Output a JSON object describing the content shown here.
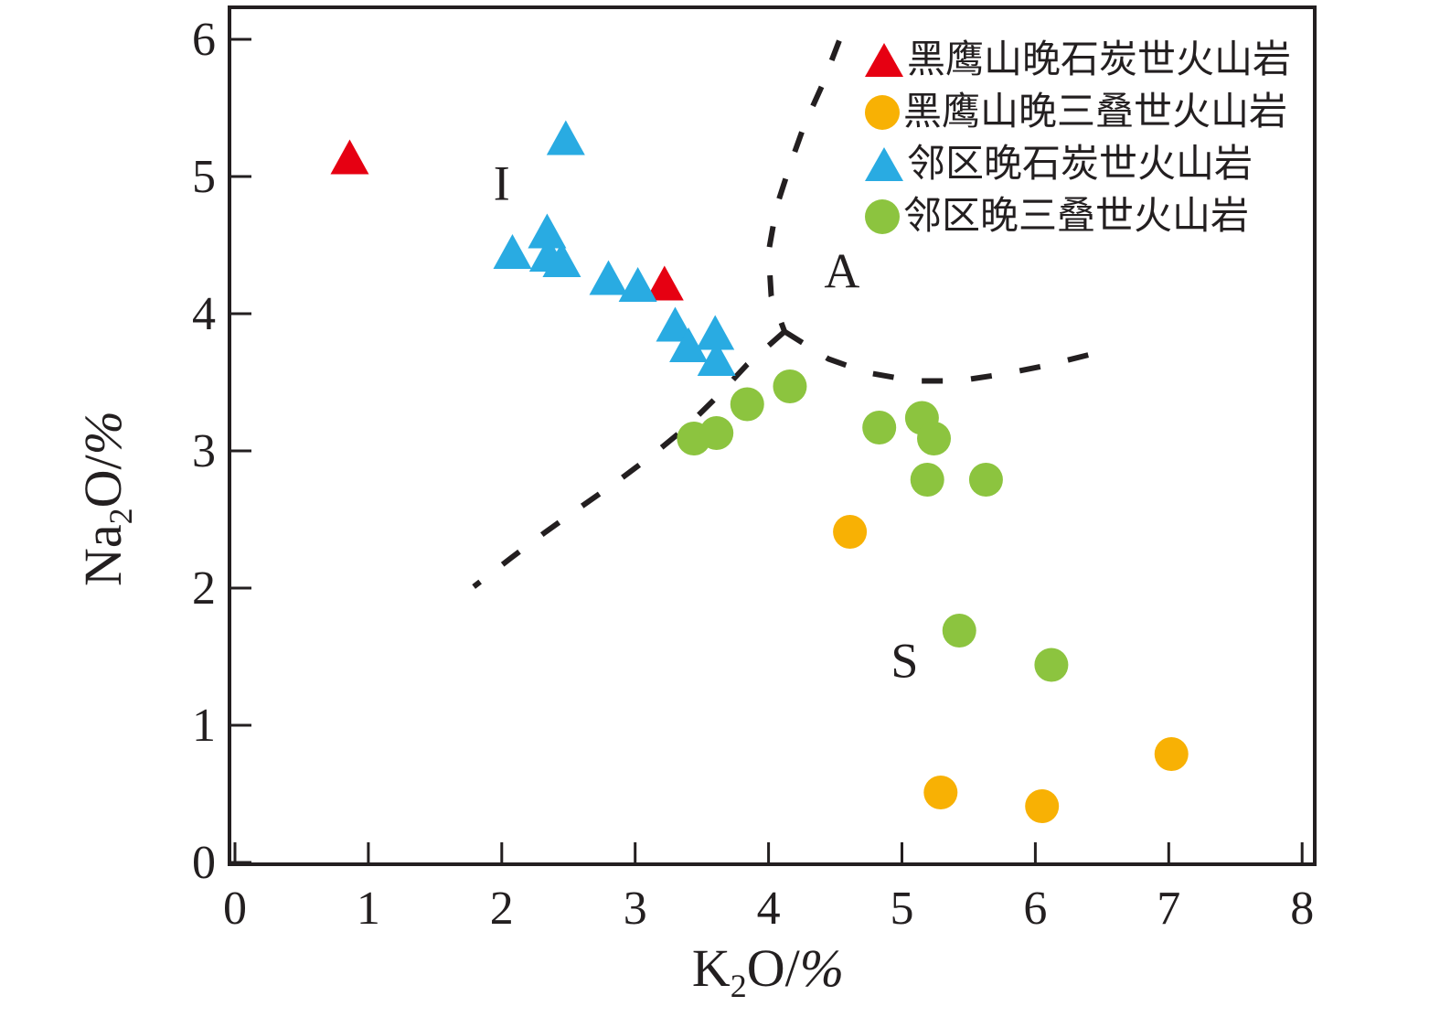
{
  "figure": {
    "background": "#ffffff",
    "line_color": "#231f20"
  },
  "chart_data": {
    "type": "scatter",
    "title": "",
    "xlabel_segments": [
      {
        "t": "K"
      },
      {
        "t": "2",
        "sub": true
      },
      {
        "t": "O/"
      },
      {
        "t": "%",
        "italic": true
      }
    ],
    "ylabel_segments": [
      {
        "t": "Na"
      },
      {
        "t": "2",
        "sub": true
      },
      {
        "t": "O/"
      },
      {
        "t": "%",
        "italic": true
      }
    ],
    "xlim": [
      0,
      8.1
    ],
    "ylim": [
      0,
      6.25
    ],
    "xticks": [
      0,
      1,
      2,
      3,
      4,
      5,
      6,
      7,
      8
    ],
    "yticks": [
      0,
      1,
      2,
      3,
      4,
      5,
      6
    ],
    "grid": false,
    "legend_position": "top-right-inside",
    "series": [
      {
        "name": "黑鹰山晚石炭世火山岩",
        "marker": "triangle",
        "color": "#e60012",
        "points": [
          [
            0.86,
            5.11
          ],
          [
            3.22,
            4.19
          ]
        ]
      },
      {
        "name": "黑鹰山晚三叠世火山岩",
        "marker": "circle",
        "color": "#f8b104",
        "points": [
          [
            4.61,
            2.41
          ],
          [
            5.29,
            0.51
          ],
          [
            6.05,
            0.41
          ],
          [
            7.02,
            0.79
          ]
        ]
      },
      {
        "name": "邻区晚石炭世火山岩",
        "marker": "triangle",
        "color": "#29abe2",
        "points": [
          [
            2.48,
            5.25
          ],
          [
            2.08,
            4.42
          ],
          [
            2.34,
            4.57
          ],
          [
            2.35,
            4.4
          ],
          [
            2.45,
            4.36
          ],
          [
            2.8,
            4.23
          ],
          [
            3.02,
            4.18
          ],
          [
            3.3,
            3.89
          ],
          [
            3.4,
            3.74
          ],
          [
            3.6,
            3.83
          ],
          [
            3.61,
            3.64
          ]
        ]
      },
      {
        "name": "邻区晚三叠世火山岩",
        "marker": "circle",
        "color": "#8cc43f",
        "points": [
          [
            3.44,
            3.09
          ],
          [
            3.61,
            3.13
          ],
          [
            3.84,
            3.34
          ],
          [
            4.16,
            3.47
          ],
          [
            4.83,
            3.17
          ],
          [
            5.15,
            3.24
          ],
          [
            5.24,
            3.09
          ],
          [
            5.19,
            2.79
          ],
          [
            5.63,
            2.79
          ],
          [
            5.43,
            1.69
          ],
          [
            6.12,
            1.44
          ]
        ]
      }
    ],
    "boundaries": [
      {
        "name": "I-A boundary (upper)",
        "style": "dashed",
        "points": [
          [
            4.53,
            5.99
          ],
          [
            4.4,
            5.66
          ],
          [
            4.27,
            5.38
          ],
          [
            4.16,
            5.08
          ],
          [
            4.06,
            4.78
          ],
          [
            4.0,
            4.45
          ],
          [
            4.02,
            4.13
          ],
          [
            4.12,
            3.87
          ]
        ]
      },
      {
        "name": "I-S boundary (lower-left)",
        "style": "dashed",
        "points": [
          [
            4.12,
            3.87
          ],
          [
            3.84,
            3.63
          ],
          [
            3.62,
            3.4
          ],
          [
            3.38,
            3.17
          ],
          [
            3.13,
            2.97
          ],
          [
            2.87,
            2.78
          ],
          [
            2.59,
            2.59
          ],
          [
            2.33,
            2.41
          ],
          [
            2.07,
            2.22
          ],
          [
            1.79,
            2.01
          ]
        ]
      },
      {
        "name": "A-S boundary (right)",
        "style": "dashed",
        "points": [
          [
            4.12,
            3.87
          ],
          [
            4.45,
            3.67
          ],
          [
            4.74,
            3.57
          ],
          [
            5.09,
            3.51
          ],
          [
            5.42,
            3.51
          ],
          [
            5.76,
            3.56
          ],
          [
            6.07,
            3.62
          ],
          [
            6.4,
            3.7
          ]
        ]
      }
    ],
    "region_labels": [
      {
        "text": "I",
        "x": 2.0,
        "y": 4.95
      },
      {
        "text": "A",
        "x": 4.55,
        "y": 4.31
      },
      {
        "text": "S",
        "x": 5.02,
        "y": 1.47
      }
    ]
  }
}
